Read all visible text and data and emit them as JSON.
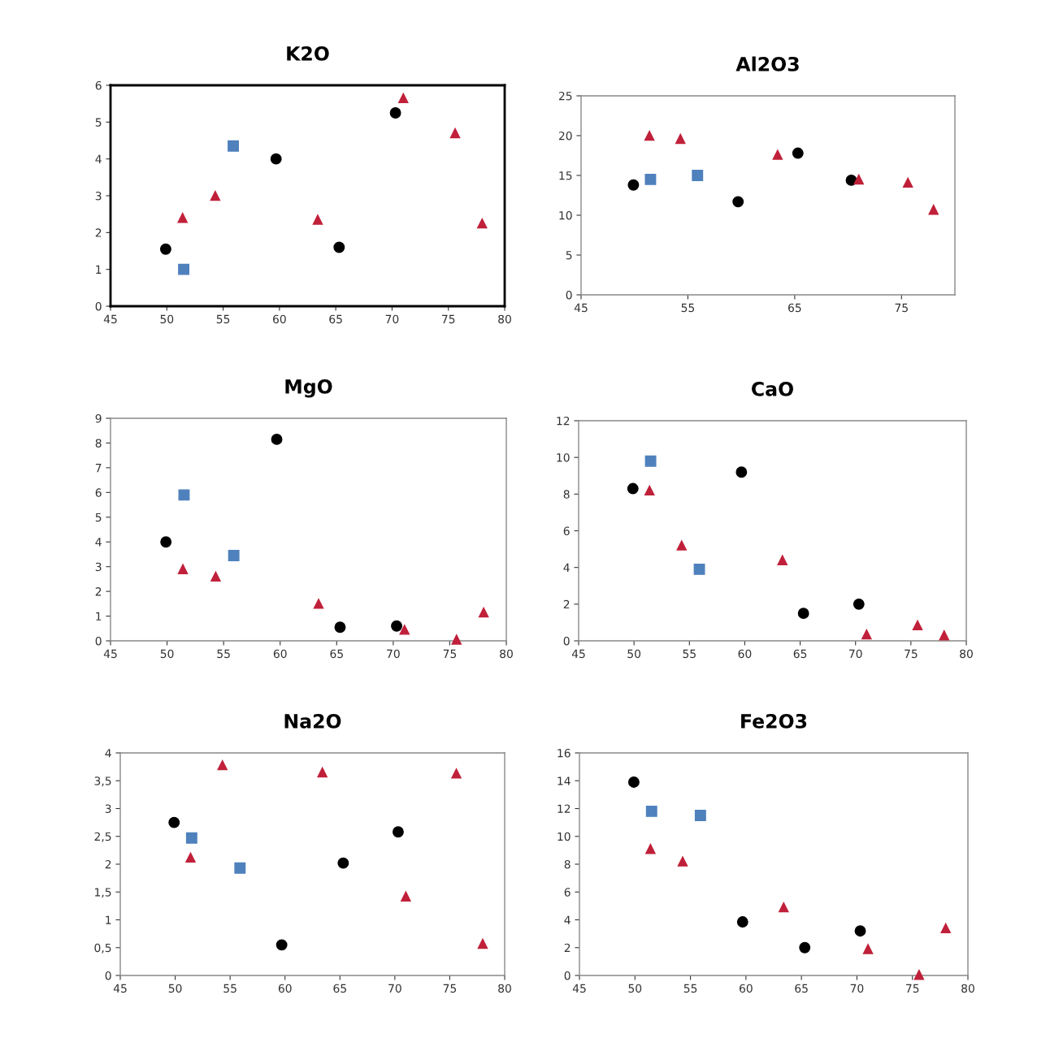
{
  "chart_data": [
    {
      "type": "scatter",
      "title": "K2O",
      "xlim": [
        45,
        80
      ],
      "xticks": [
        45,
        50,
        55,
        60,
        65,
        70,
        75,
        80
      ],
      "ylim": [
        0,
        6
      ],
      "yticks": [
        0,
        1,
        2,
        3,
        4,
        5,
        6
      ],
      "grid": false,
      "legend": false,
      "series": [
        {
          "color": "#000000",
          "marker": "circle",
          "x": [
            49.9,
            59.7,
            65.3,
            70.3
          ],
          "values": [
            1.55,
            4.0,
            1.6,
            5.25
          ]
        },
        {
          "color": "#4f81bd",
          "marker": "square",
          "x": [
            51.5,
            55.9
          ],
          "values": [
            1.0,
            4.35
          ]
        },
        {
          "color": "#c0203a",
          "marker": "triangle",
          "x": [
            51.4,
            54.3,
            63.4,
            71.0,
            75.6,
            78.0
          ],
          "values": [
            2.4,
            3.0,
            2.35,
            5.65,
            4.7,
            2.25
          ]
        }
      ]
    },
    {
      "type": "scatter",
      "title": "Al2O3",
      "xlim": [
        45,
        80
      ],
      "xticks": [
        45,
        55,
        65,
        75
      ],
      "ylim": [
        0,
        25
      ],
      "yticks": [
        0,
        5,
        10,
        15,
        20,
        25
      ],
      "grid": false,
      "legend": false,
      "series": [
        {
          "color": "#000000",
          "marker": "circle",
          "x": [
            49.9,
            59.7,
            65.3,
            70.3
          ],
          "values": [
            13.8,
            11.7,
            17.8,
            14.4
          ]
        },
        {
          "color": "#4f81bd",
          "marker": "square",
          "x": [
            51.5,
            55.9
          ],
          "values": [
            14.5,
            15.0
          ]
        },
        {
          "color": "#c0203a",
          "marker": "triangle",
          "x": [
            51.4,
            54.3,
            63.4,
            71.0,
            75.6,
            78.0
          ],
          "values": [
            20.0,
            19.6,
            17.6,
            14.5,
            14.1,
            10.7
          ]
        }
      ]
    },
    {
      "type": "scatter",
      "title": "MgO",
      "xlim": [
        45,
        80
      ],
      "xticks": [
        45,
        50,
        55,
        60,
        65,
        70,
        75,
        80
      ],
      "ylim": [
        0,
        9
      ],
      "yticks": [
        0,
        1,
        2,
        3,
        4,
        5,
        6,
        7,
        8,
        9
      ],
      "grid": false,
      "legend": false,
      "series": [
        {
          "color": "#000000",
          "marker": "circle",
          "x": [
            49.9,
            59.7,
            65.3,
            70.3
          ],
          "values": [
            4.0,
            8.15,
            0.55,
            0.6
          ]
        },
        {
          "color": "#4f81bd",
          "marker": "square",
          "x": [
            51.5,
            55.9
          ],
          "values": [
            5.9,
            3.45
          ]
        },
        {
          "color": "#c0203a",
          "marker": "triangle",
          "x": [
            51.4,
            54.3,
            63.4,
            71.0,
            75.6,
            78.0
          ],
          "values": [
            2.9,
            2.6,
            1.5,
            0.45,
            0.05,
            1.15
          ]
        }
      ]
    },
    {
      "type": "scatter",
      "title": "CaO",
      "xlim": [
        45,
        80
      ],
      "xticks": [
        45,
        50,
        55,
        60,
        65,
        70,
        75,
        80
      ],
      "ylim": [
        0,
        12
      ],
      "yticks": [
        0,
        2,
        4,
        6,
        8,
        10,
        12
      ],
      "grid": false,
      "legend": false,
      "series": [
        {
          "color": "#000000",
          "marker": "circle",
          "x": [
            49.9,
            59.7,
            65.3,
            70.3
          ],
          "values": [
            8.3,
            9.2,
            1.5,
            2.0
          ]
        },
        {
          "color": "#4f81bd",
          "marker": "square",
          "x": [
            51.5,
            55.9
          ],
          "values": [
            9.8,
            3.9
          ]
        },
        {
          "color": "#c0203a",
          "marker": "triangle",
          "x": [
            51.4,
            54.3,
            63.4,
            71.0,
            75.6,
            78.0
          ],
          "values": [
            8.2,
            5.2,
            4.4,
            0.35,
            0.85,
            0.3
          ]
        }
      ]
    },
    {
      "type": "scatter",
      "title": "Na2O",
      "xlim": [
        45,
        80
      ],
      "xticks": [
        45,
        50,
        55,
        60,
        65,
        70,
        75,
        80
      ],
      "ylim": [
        0,
        4
      ],
      "yticks": [
        0,
        {
          "value": 0.5,
          "label": "0,5"
        },
        1,
        {
          "value": 1.5,
          "label": "1,5"
        },
        2,
        {
          "value": 2.5,
          "label": "2,5"
        },
        3,
        {
          "value": 3.5,
          "label": "3,5"
        },
        4
      ],
      "grid": false,
      "legend": false,
      "series": [
        {
          "color": "#000000",
          "marker": "circle",
          "x": [
            49.9,
            59.7,
            65.3,
            70.3
          ],
          "values": [
            2.75,
            0.55,
            2.02,
            2.58
          ]
        },
        {
          "color": "#4f81bd",
          "marker": "square",
          "x": [
            51.5,
            55.9
          ],
          "values": [
            2.47,
            1.93
          ]
        },
        {
          "color": "#c0203a",
          "marker": "triangle",
          "x": [
            51.4,
            54.3,
            63.4,
            71.0,
            75.6,
            78.0
          ],
          "values": [
            2.12,
            3.78,
            3.65,
            1.42,
            3.63,
            0.57
          ]
        }
      ]
    },
    {
      "type": "scatter",
      "title": "Fe2O3",
      "xlim": [
        45,
        80
      ],
      "xticks": [
        45,
        50,
        55,
        60,
        65,
        70,
        75,
        80
      ],
      "ylim": [
        0,
        16
      ],
      "yticks": [
        0,
        2,
        4,
        6,
        8,
        10,
        12,
        14,
        16
      ],
      "grid": false,
      "legend": false,
      "series": [
        {
          "color": "#000000",
          "marker": "circle",
          "x": [
            49.9,
            59.7,
            65.3,
            70.3
          ],
          "values": [
            13.9,
            3.85,
            2.0,
            3.2
          ]
        },
        {
          "color": "#4f81bd",
          "marker": "square",
          "x": [
            51.5,
            55.9
          ],
          "values": [
            11.8,
            11.5
          ]
        },
        {
          "color": "#c0203a",
          "marker": "triangle",
          "x": [
            51.4,
            54.3,
            63.4,
            71.0,
            75.6,
            78.0
          ],
          "values": [
            9.1,
            8.2,
            4.9,
            1.9,
            0.05,
            3.4
          ]
        }
      ]
    }
  ]
}
